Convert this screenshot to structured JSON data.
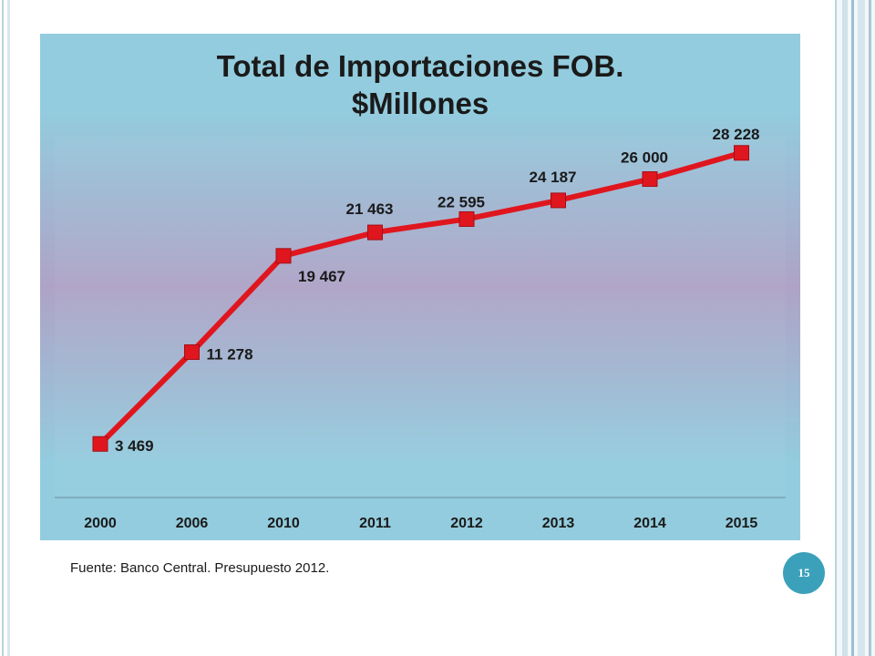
{
  "chart_data": {
    "type": "line",
    "title": "Total de Importaciones FOB.",
    "subtitle": "$Millones",
    "categories": [
      "2000",
      "2006",
      "2010",
      "2011",
      "2012",
      "2013",
      "2014",
      "2015"
    ],
    "series": [
      {
        "values": [
          3469,
          11278,
          19467,
          21463,
          22595,
          24187,
          26000,
          28228
        ],
        "labels": [
          "3 469",
          "11 278",
          "19 467",
          "21 463",
          "22 595",
          "24 187",
          "26 000",
          "28 228"
        ],
        "color": "#e0161f"
      }
    ],
    "ylim": [
      0,
      29500
    ],
    "grid": false,
    "legend": "none",
    "xlabel": "",
    "ylabel": ""
  },
  "footer": {
    "source": "Fuente: Banco Central. Presupuesto 2012.",
    "page_number": "15"
  },
  "colors": {
    "line": "#e0161f",
    "marker": "#e0161f",
    "badge": "#3ba1bb"
  }
}
